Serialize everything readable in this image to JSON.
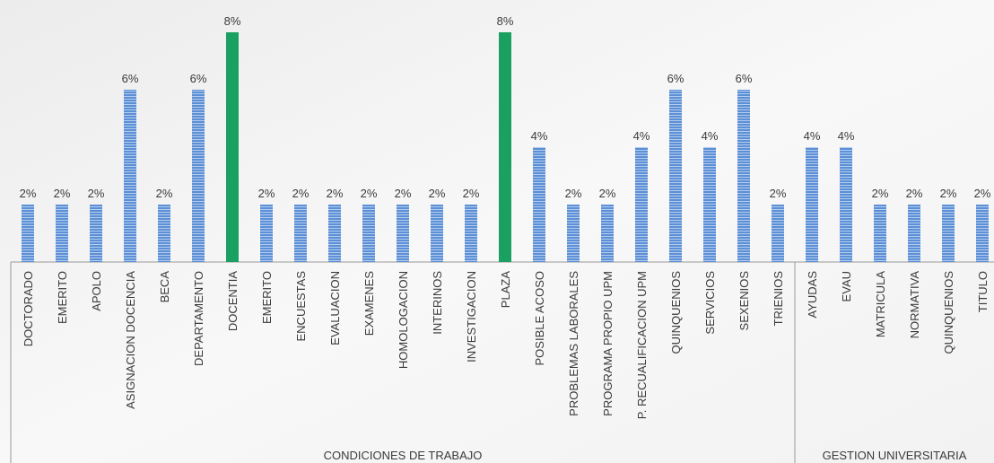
{
  "chart_data": {
    "type": "bar",
    "groups": [
      {
        "name": "CONDICIONES DE TRABAJO",
        "categories": [
          "DOCTORADO",
          "EMERITO",
          "APOLO",
          "ASIGNACION DOCENCIA",
          "BECA",
          "DEPARTAMENTO",
          "DOCENTIA",
          "EMERITO",
          "ENCUESTAS",
          "EVALUACION",
          "EXAMENES",
          "HOMOLOGACION",
          "INTERINOS",
          "INVESTIGACION",
          "PLAZA",
          "POSIBLE ACOSO",
          "PROBLEMAS LABORALES",
          "PROGRAMA PROPIO UPM",
          "P. RECUALIFICACION UPM",
          "QUINQUENIOS",
          "SERVICIOS",
          "SEXENIOS",
          "TRIENIOS"
        ],
        "values": [
          2,
          2,
          2,
          6,
          2,
          6,
          8,
          2,
          2,
          2,
          2,
          2,
          2,
          2,
          8,
          4,
          2,
          2,
          4,
          6,
          4,
          6,
          2
        ],
        "value_labels": [
          "2%",
          "2%",
          "2%",
          "6%",
          "2%",
          "6%",
          "8%",
          "2%",
          "2%",
          "2%",
          "2%",
          "2%",
          "2%",
          "2%",
          "8%",
          "4%",
          "2%",
          "2%",
          "4%",
          "6%",
          "4%",
          "6%",
          "2%"
        ],
        "colors": [
          "#5b8fd6",
          "#5b8fd6",
          "#5b8fd6",
          "#5b8fd6",
          "#5b8fd6",
          "#5b8fd6",
          "#1aa060",
          "#5b8fd6",
          "#5b8fd6",
          "#5b8fd6",
          "#5b8fd6",
          "#5b8fd6",
          "#5b8fd6",
          "#5b8fd6",
          "#1aa060",
          "#5b8fd6",
          "#5b8fd6",
          "#5b8fd6",
          "#5b8fd6",
          "#5b8fd6",
          "#5b8fd6",
          "#5b8fd6",
          "#5b8fd6"
        ]
      },
      {
        "name": "GESTION UNIVERSITARIA",
        "categories": [
          "AYUDAS",
          "EVAU",
          "MATRICULA",
          "NORMATIVA",
          "QUINQUENIOS",
          "TITULO"
        ],
        "values": [
          4,
          4,
          2,
          2,
          2,
          2
        ],
        "value_labels": [
          "4%",
          "4%",
          "2%",
          "2%",
          "2%",
          "2%"
        ],
        "colors": [
          "#5b8fd6",
          "#5b8fd6",
          "#5b8fd6",
          "#5b8fd6",
          "#5b8fd6",
          "#5b8fd6"
        ]
      }
    ]
  }
}
